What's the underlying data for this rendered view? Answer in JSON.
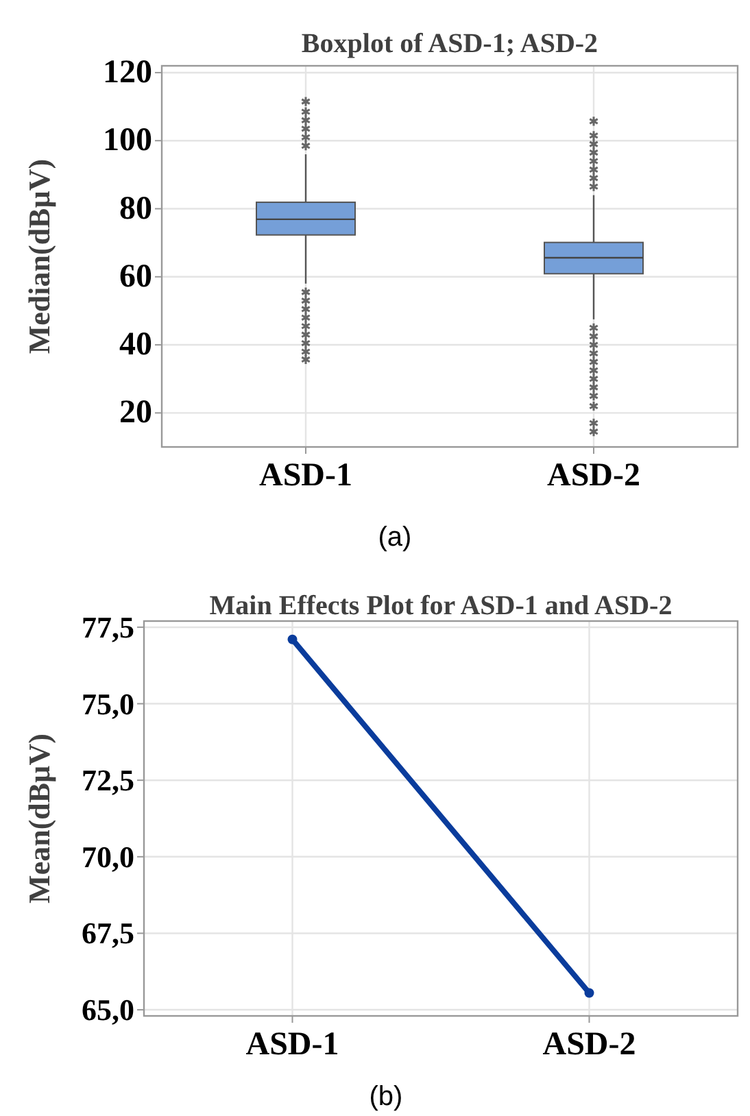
{
  "chart_data": [
    {
      "type": "box",
      "title": "Boxplot of ASD-1; ASD-2",
      "ylabel": "Median(dBµV)",
      "categories": [
        "ASD-1",
        "ASD-2"
      ],
      "color": "#759fd8",
      "ylim": [
        10,
        122
      ],
      "yticks": [
        20,
        40,
        60,
        80,
        100,
        120
      ],
      "grid": true,
      "annotations": [
        "(a)"
      ],
      "boxes": [
        {
          "low": 58,
          "q1": 72.3,
          "median": 76.9,
          "q3": 81.9,
          "high": 96,
          "outliers": [
            98.5,
            101,
            103.5,
            106,
            108.5,
            111.5,
            55.5,
            53,
            50.5,
            48,
            45.5,
            43,
            40.5,
            38,
            35.7
          ]
        },
        {
          "low": 47.5,
          "q1": 60.9,
          "median": 65.6,
          "q3": 70.1,
          "high": 84,
          "outliers": [
            86.5,
            89,
            91.5,
            94,
            96.5,
            99,
            101.5,
            105.7,
            45,
            42.5,
            40,
            37.5,
            35,
            32.5,
            30,
            27.5,
            25,
            22,
            17,
            14.5
          ]
        }
      ]
    },
    {
      "type": "line",
      "title": "Main Effects Plot for ASD-1 and ASD-2",
      "ylabel": "Mean(dBµV)",
      "categories": [
        "ASD-1",
        "ASD-2"
      ],
      "ylim": [
        64.8,
        77.7
      ],
      "yticks": [
        {
          "value": 65,
          "label": "65,0"
        },
        {
          "value": 67.5,
          "label": "67,5"
        },
        {
          "value": 70,
          "label": "70,0"
        },
        {
          "value": 72.5,
          "label": "72,5"
        },
        {
          "value": 75,
          "label": "75,0"
        },
        {
          "value": 77.5,
          "label": "77,5"
        }
      ],
      "grid": true,
      "marker": "circle",
      "annotations": [
        "(b)"
      ],
      "series": [
        {
          "color": "#0a3c9c",
          "values": [
            77.1,
            65.55
          ]
        }
      ]
    }
  ]
}
